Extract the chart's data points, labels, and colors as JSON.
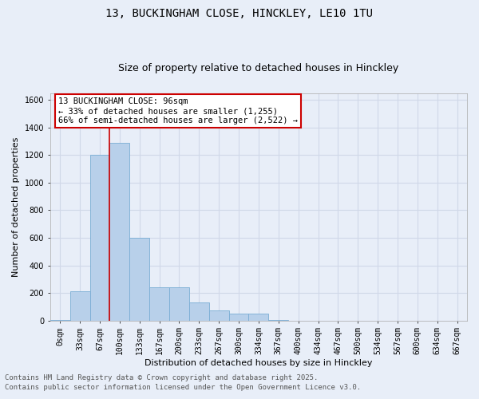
{
  "title_line1": "13, BUCKINGHAM CLOSE, HINCKLEY, LE10 1TU",
  "title_line2": "Size of property relative to detached houses in Hinckley",
  "xlabel": "Distribution of detached houses by size in Hinckley",
  "ylabel": "Number of detached properties",
  "categories": [
    "0sqm",
    "33sqm",
    "67sqm",
    "100sqm",
    "133sqm",
    "167sqm",
    "200sqm",
    "233sqm",
    "267sqm",
    "300sqm",
    "334sqm",
    "367sqm",
    "400sqm",
    "434sqm",
    "467sqm",
    "500sqm",
    "534sqm",
    "567sqm",
    "600sqm",
    "634sqm",
    "667sqm"
  ],
  "values": [
    5,
    210,
    1200,
    1290,
    600,
    240,
    240,
    130,
    70,
    50,
    50,
    5,
    0,
    0,
    0,
    0,
    0,
    0,
    0,
    0,
    0
  ],
  "bar_color": "#b8d0ea",
  "bar_edgecolor": "#7aadd4",
  "background_color": "#e8eef8",
  "grid_color": "#d0d8e8",
  "vline_color": "#cc0000",
  "vline_x_index": 3,
  "annotation_text": "13 BUCKINGHAM CLOSE: 96sqm\n← 33% of detached houses are smaller (1,255)\n66% of semi-detached houses are larger (2,522) →",
  "annotation_box_edgecolor": "#cc0000",
  "annotation_box_facecolor": "#ffffff",
  "ylim": [
    0,
    1650
  ],
  "yticks": [
    0,
    200,
    400,
    600,
    800,
    1000,
    1200,
    1400,
    1600
  ],
  "footer_line1": "Contains HM Land Registry data © Crown copyright and database right 2025.",
  "footer_line2": "Contains public sector information licensed under the Open Government Licence v3.0.",
  "title_fontsize": 10,
  "subtitle_fontsize": 9,
  "axis_label_fontsize": 8,
  "tick_fontsize": 7,
  "annotation_fontsize": 7.5,
  "footer_fontsize": 6.5
}
